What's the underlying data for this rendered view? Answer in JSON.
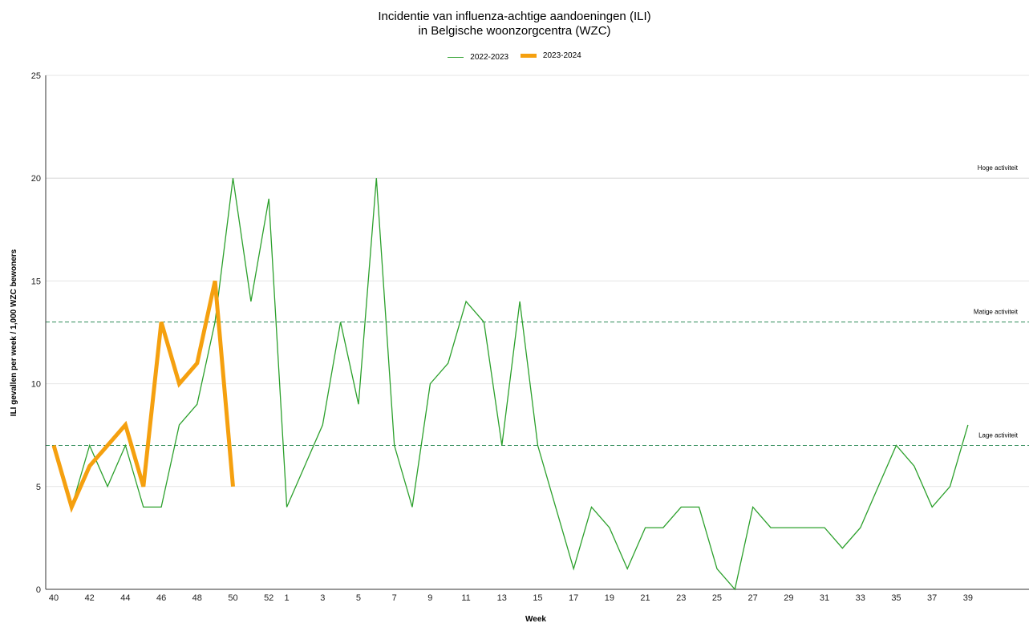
{
  "chart_data": {
    "type": "line",
    "title_line1": "Incidentie van influenza-achtige aandoeningen (ILI)",
    "title_line2": "in Belgische woonzorgcentra (WZC)",
    "xlabel": "Week",
    "ylabel": "ILI gevallen per week / 1,000 WZC bewoners",
    "ylim": [
      0,
      25
    ],
    "yticks": [
      0,
      5,
      10,
      15,
      20,
      25
    ],
    "weeks": [
      40,
      41,
      42,
      43,
      44,
      45,
      46,
      47,
      48,
      49,
      50,
      51,
      52,
      1,
      2,
      3,
      4,
      5,
      6,
      7,
      8,
      9,
      10,
      11,
      12,
      13,
      14,
      15,
      16,
      17,
      18,
      19,
      20,
      21,
      22,
      23,
      24,
      25,
      26,
      27,
      28,
      29,
      30,
      31,
      32,
      33,
      34,
      35,
      36,
      37,
      38,
      39
    ],
    "xtick_labels": [
      "40",
      "42",
      "44",
      "46",
      "48",
      "50",
      "52",
      "1",
      "3",
      "5",
      "7",
      "9",
      "11",
      "13",
      "15",
      "17",
      "19",
      "21",
      "23",
      "25",
      "27",
      "29",
      "31",
      "33",
      "35",
      "37",
      "39"
    ],
    "grid": "horizontal",
    "legend_position": "top-center",
    "series": [
      {
        "name": "2022-2023",
        "color": "#2ca02c",
        "values": [
          7,
          4,
          7,
          5,
          7,
          4,
          4,
          8,
          9,
          13,
          20,
          14,
          19,
          4,
          6,
          8,
          13,
          9,
          20,
          7,
          4,
          10,
          11,
          14,
          13,
          7,
          14,
          7,
          4,
          1,
          4,
          3,
          1,
          3,
          3,
          4,
          4,
          1,
          0,
          4,
          3,
          3,
          3,
          3,
          2,
          3,
          5,
          7,
          6,
          4,
          5,
          8
        ]
      },
      {
        "name": "2023-2024",
        "color": "#f5a00f",
        "values": [
          7,
          4,
          6,
          7,
          8,
          5,
          13,
          10,
          11,
          15,
          5
        ]
      }
    ],
    "reference_lines": [
      {
        "label": "Hoge activiteit",
        "value": 20,
        "color": "#dddddd",
        "dashed": false
      },
      {
        "label": "Matige activiteit",
        "value": 13,
        "color": "#2e8b57",
        "dashed": true
      },
      {
        "label": "Lage activiteit",
        "value": 7,
        "color": "#2e8b57",
        "dashed": true
      }
    ]
  }
}
